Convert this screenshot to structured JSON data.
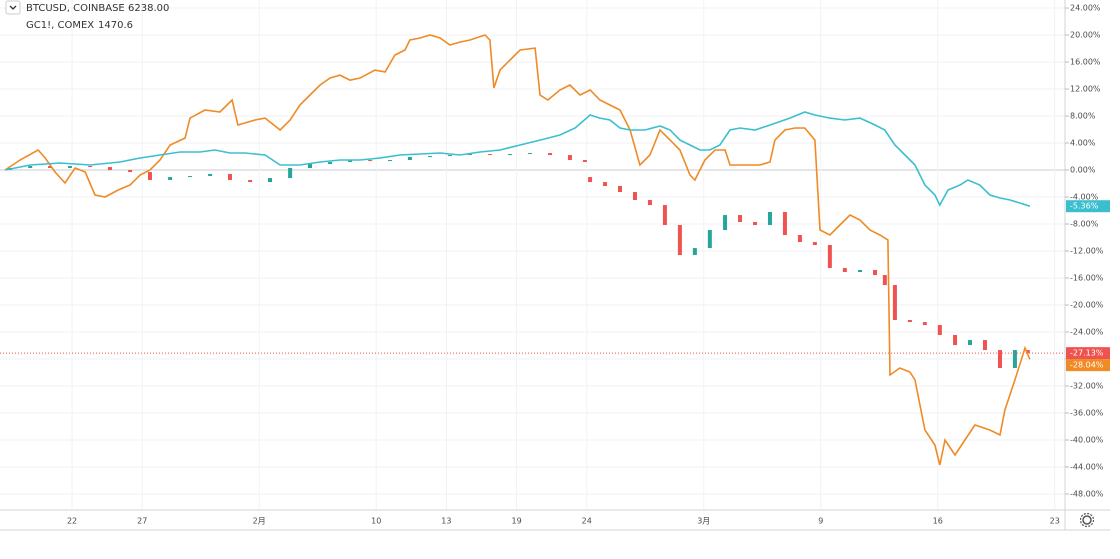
{
  "chart_data": {
    "type": "line",
    "series": [
      {
        "name": "BTCUSD, COINBASE",
        "price": "6238.00",
        "color": "#f08a24",
        "last_label": "-28.04%",
        "x": [
          -2.86,
          -2.22,
          -1.45,
          -1.15,
          -0.73,
          -0.3,
          0.13,
          0.56,
          0.98,
          1.41,
          1.97,
          2.48,
          2.91,
          3.33,
          3.76,
          4.19,
          4.83,
          5.04,
          5.68,
          6.32,
          6.84,
          7.09,
          7.82,
          8.25,
          8.89,
          9.32,
          9.74,
          10.17,
          10.6,
          11.03,
          11.45,
          11.88,
          12.31,
          12.95,
          13.38,
          13.8,
          14.23,
          14.44,
          14.87,
          15.3,
          15.73,
          16.15,
          16.58,
          17.01,
          17.65,
          17.86,
          18.03,
          18.29,
          18.72,
          19.15,
          19.79,
          20.0,
          20.34,
          20.85,
          21.28,
          21.71,
          22.14,
          22.56,
          22.99,
          23.42,
          23.85,
          24.27,
          24.7,
          25.13,
          25.56,
          25.98,
          26.41,
          26.62,
          27.05,
          27.48,
          27.91,
          28.12,
          28.55,
          29.4,
          29.83,
          30.04,
          30.47,
          30.9,
          31.32,
          31.75,
          31.97,
          32.39,
          32.82,
          33.25,
          33.68,
          34.1,
          34.53,
          34.87,
          34.96,
          35.38,
          35.81,
          36.03,
          36.45,
          36.88,
          37.09,
          37.31,
          37.74,
          38.16,
          38.59,
          39.23,
          39.66,
          39.87,
          40.3,
          40.73,
          40.94
        ],
        "values": [
          0,
          1.48,
          2.96,
          1.78,
          -0.3,
          -1.93,
          0.3,
          -0.3,
          -3.7,
          -4.0,
          -2.96,
          -2.22,
          -0.74,
          0,
          1.48,
          3.7,
          4.74,
          7.7,
          8.89,
          8.59,
          10.37,
          6.67,
          7.41,
          7.7,
          5.93,
          7.41,
          9.63,
          11.11,
          12.59,
          13.63,
          14.07,
          13.33,
          13.63,
          14.81,
          14.52,
          17.04,
          17.78,
          19.26,
          19.56,
          20.0,
          19.56,
          18.52,
          18.96,
          19.26,
          20.0,
          19.26,
          12.15,
          14.81,
          16.3,
          17.78,
          18.07,
          11.11,
          10.37,
          11.85,
          12.59,
          11.11,
          11.85,
          10.37,
          9.63,
          8.89,
          5.93,
          0.74,
          2.22,
          5.93,
          4.44,
          2.96,
          -0.74,
          -1.48,
          1.48,
          2.96,
          2.96,
          0.74,
          0.74,
          0.74,
          1.19,
          4.44,
          5.93,
          6.22,
          6.22,
          4.44,
          -8.89,
          -9.63,
          -8.15,
          -6.67,
          -7.41,
          -8.89,
          -9.63,
          -10.37,
          -30.37,
          -29.33,
          -29.93,
          -31.11,
          -38.52,
          -40.74,
          -43.7,
          -40.0,
          -42.22,
          -40.0,
          -37.78,
          -38.52,
          -39.26,
          -35.56,
          -31.11,
          -26.37,
          -28.04
        ]
      },
      {
        "name": "GC1!, COMEX",
        "price": "1470.6",
        "color": "#3bbfcf",
        "last_label": "-5.36%",
        "x": [
          -2.86,
          -1.79,
          -0.51,
          0.77,
          2.05,
          2.91,
          3.76,
          4.62,
          5.47,
          6.11,
          6.75,
          7.39,
          8.25,
          8.89,
          9.74,
          10.6,
          11.45,
          12.31,
          13.16,
          14.02,
          14.87,
          15.73,
          16.58,
          17.44,
          18.29,
          19.15,
          20.0,
          20.85,
          21.5,
          22.14,
          22.56,
          22.99,
          23.42,
          23.85,
          24.49,
          25.13,
          25.56,
          25.98,
          26.41,
          26.84,
          27.26,
          27.69,
          28.12,
          28.55,
          29.19,
          29.83,
          30.68,
          31.32,
          31.75,
          32.39,
          33.03,
          33.68,
          34.32,
          34.74,
          35.17,
          35.6,
          36.03,
          36.45,
          36.88,
          37.09,
          37.44,
          37.95,
          38.29,
          38.8,
          39.23,
          39.66,
          40.09,
          40.51,
          40.94
        ],
        "values": [
          0,
          0.74,
          1.04,
          0.74,
          1.19,
          1.78,
          2.22,
          2.67,
          2.67,
          2.96,
          2.52,
          2.52,
          2.22,
          0.74,
          0.74,
          1.19,
          1.48,
          1.48,
          1.78,
          2.22,
          2.37,
          2.52,
          2.22,
          2.67,
          2.96,
          3.7,
          4.44,
          5.19,
          6.22,
          8.15,
          7.7,
          7.41,
          6.22,
          5.93,
          5.93,
          6.52,
          5.93,
          4.44,
          3.7,
          2.96,
          2.96,
          3.7,
          5.93,
          6.22,
          5.93,
          6.67,
          7.7,
          8.59,
          8.15,
          7.7,
          7.41,
          7.7,
          6.67,
          5.93,
          3.7,
          2.22,
          0.74,
          -2.22,
          -3.7,
          -5.19,
          -2.96,
          -2.22,
          -1.48,
          -2.22,
          -3.7,
          -4.15,
          -4.44,
          -4.89,
          -5.36
        ]
      }
    ],
    "candles": {
      "up_color": "#26a69a",
      "down_color": "#ef5350",
      "last_label": "-27.13%",
      "x": [
        -2.65,
        -1.79,
        -0.94,
        -0.09,
        0.77,
        1.62,
        2.48,
        3.33,
        4.19,
        5.04,
        5.9,
        6.75,
        7.61,
        8.46,
        9.32,
        10.17,
        11.03,
        11.88,
        12.74,
        13.59,
        14.44,
        15.3,
        16.15,
        17.01,
        17.86,
        18.72,
        19.57,
        20.43,
        21.28,
        21.92,
        22.14,
        22.78,
        23.42,
        24.06,
        24.7,
        25.34,
        25.98,
        26.62,
        27.26,
        27.91,
        28.55,
        29.19,
        29.83,
        30.47,
        31.11,
        31.75,
        32.39,
        33.03,
        33.68,
        34.32,
        34.74,
        35.17,
        35.81,
        36.45,
        37.09,
        37.74,
        38.38,
        39.02,
        39.66,
        40.3,
        40.85
      ],
      "open": [
        0,
        0.3,
        0.59,
        0.3,
        0.59,
        0.44,
        0,
        -0.3,
        -1.48,
        -1.04,
        -0.89,
        -0.59,
        -1.48,
        -1.78,
        -1.19,
        0.3,
        0.89,
        1.19,
        1.48,
        1.33,
        1.48,
        1.93,
        2.07,
        2.22,
        2.37,
        2.22,
        2.37,
        2.52,
        2.22,
        1.48,
        -1.04,
        -1.78,
        -2.37,
        -3.26,
        -4.44,
        -5.19,
        -8.15,
        -12.59,
        -11.56,
        -8.89,
        -6.67,
        -7.7,
        -8.15,
        -6.22,
        -9.63,
        -10.67,
        -11.11,
        -14.52,
        -15.11,
        -14.81,
        -15.56,
        -17.04,
        -22.22,
        -22.52,
        -22.96,
        -24.44,
        -25.93,
        -25.19,
        -26.67,
        -29.33,
        -26.67
      ],
      "close": [
        0.3,
        0.59,
        0.3,
        0.59,
        0.44,
        0,
        -0.3,
        -1.48,
        -1.04,
        -0.89,
        -0.59,
        -1.48,
        -1.78,
        -1.19,
        0.3,
        0.89,
        1.19,
        1.48,
        1.33,
        1.48,
        1.93,
        2.07,
        2.22,
        2.37,
        2.22,
        2.37,
        2.52,
        2.22,
        1.48,
        1.19,
        -1.78,
        -2.37,
        -3.26,
        -4.44,
        -5.19,
        -8.15,
        -12.59,
        -11.56,
        -8.89,
        -6.67,
        -7.7,
        -8.15,
        -6.22,
        -9.63,
        -10.67,
        -11.11,
        -14.52,
        -15.11,
        -14.81,
        -15.56,
        -17.04,
        -22.22,
        -22.52,
        -22.96,
        -24.44,
        -25.93,
        -25.19,
        -26.67,
        -29.33,
        -26.67,
        -27.13
      ]
    },
    "xlim": [
      -3.08,
      42.44
    ],
    "xticks": [
      {
        "value": 0,
        "label": "22"
      },
      {
        "value": 3,
        "label": "27"
      },
      {
        "value": 8,
        "label": "2月"
      },
      {
        "value": 13,
        "label": "10"
      },
      {
        "value": 16,
        "label": "13"
      },
      {
        "value": 19,
        "label": "19"
      },
      {
        "value": 22,
        "label": "24"
      },
      {
        "value": 27,
        "label": "3月"
      },
      {
        "value": 32,
        "label": "9"
      },
      {
        "value": 37,
        "label": "16"
      },
      {
        "value": 42,
        "label": "23"
      }
    ],
    "ylim": [
      -50.37,
      25.19
    ],
    "yticks": [
      {
        "value": 24,
        "label": "24.00%"
      },
      {
        "value": 20,
        "label": "20.00%"
      },
      {
        "value": 16,
        "label": "16.00%"
      },
      {
        "value": 12,
        "label": "12.00%"
      },
      {
        "value": 8,
        "label": "8.00%"
      },
      {
        "value": 4,
        "label": "4.00%"
      },
      {
        "value": 0,
        "label": "0.00%"
      },
      {
        "value": -4,
        "label": "-4.00%"
      },
      {
        "value": -8,
        "label": "-8.00%"
      },
      {
        "value": -12,
        "label": "-12.00%"
      },
      {
        "value": -16,
        "label": "-16.00%"
      },
      {
        "value": -20,
        "label": "-20.00%"
      },
      {
        "value": -24,
        "label": "-24.00%"
      },
      {
        "value": -28,
        "label": "-28.00%"
      },
      {
        "value": -32,
        "label": "-32.00%"
      },
      {
        "value": -36,
        "label": "-36.00%"
      },
      {
        "value": -40,
        "label": "-40.00%"
      },
      {
        "value": -44,
        "label": "-44.00%"
      },
      {
        "value": -48,
        "label": "-48.00%"
      }
    ],
    "grid": true
  }
}
